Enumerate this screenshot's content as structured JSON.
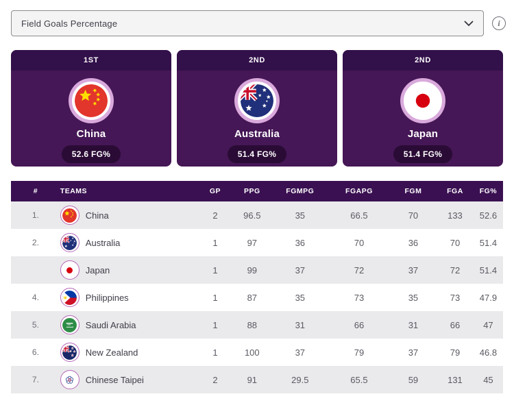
{
  "filter": {
    "selected_option": "Field Goals Percentage"
  },
  "podium": {
    "cards": [
      {
        "position_label": "1ST",
        "team": "China",
        "stat_badge": "52.6 FG%",
        "flag": "china"
      },
      {
        "position_label": "2ND",
        "team": "Australia",
        "stat_badge": "51.4 FG%",
        "flag": "australia"
      },
      {
        "position_label": "2ND",
        "team": "Japan",
        "stat_badge": "51.4 FG%",
        "flag": "japan"
      }
    ]
  },
  "table": {
    "columns": [
      "#",
      "TEAMS",
      "GP",
      "PPG",
      "FGMPG",
      "FGAPG",
      "FGM",
      "FGA",
      "FG%"
    ],
    "rows": [
      {
        "rank": "1.",
        "team": "China",
        "flag": "china",
        "gp": "2",
        "ppg": "96.5",
        "fgmpg": "35",
        "fgapg": "66.5",
        "fgm": "70",
        "fga": "133",
        "fg_pct": "52.6"
      },
      {
        "rank": "2.",
        "team": "Australia",
        "flag": "australia",
        "gp": "1",
        "ppg": "97",
        "fgmpg": "36",
        "fgapg": "70",
        "fgm": "36",
        "fga": "70",
        "fg_pct": "51.4"
      },
      {
        "rank": "",
        "team": "Japan",
        "flag": "japan",
        "gp": "1",
        "ppg": "99",
        "fgmpg": "37",
        "fgapg": "72",
        "fgm": "37",
        "fga": "72",
        "fg_pct": "51.4"
      },
      {
        "rank": "4.",
        "team": "Philippines",
        "flag": "philippines",
        "gp": "1",
        "ppg": "87",
        "fgmpg": "35",
        "fgapg": "73",
        "fgm": "35",
        "fga": "73",
        "fg_pct": "47.9"
      },
      {
        "rank": "5.",
        "team": "Saudi Arabia",
        "flag": "saudiarabia",
        "gp": "1",
        "ppg": "88",
        "fgmpg": "31",
        "fgapg": "66",
        "fgm": "31",
        "fga": "66",
        "fg_pct": "47"
      },
      {
        "rank": "6.",
        "team": "New Zealand",
        "flag": "newzealand",
        "gp": "1",
        "ppg": "100",
        "fgmpg": "37",
        "fgapg": "79",
        "fgm": "37",
        "fga": "79",
        "fg_pct": "46.8"
      },
      {
        "rank": "7.",
        "team": "Chinese Taipei",
        "flag": "chinesetaipei",
        "gp": "2",
        "ppg": "91",
        "fgmpg": "29.5",
        "fgapg": "65.5",
        "fgm": "59",
        "fga": "131",
        "fg_pct": "45"
      }
    ]
  },
  "icons": {
    "dropdown": "chevron-down-icon",
    "info": "info-icon",
    "flags": [
      "flag-china-icon",
      "flag-australia-icon",
      "flag-japan-icon",
      "flag-philippines-icon",
      "flag-saudi-arabia-icon",
      "flag-new-zealand-icon",
      "flag-chinese-taipei-icon"
    ]
  },
  "colors": {
    "card_header": "#32104A",
    "card_body": "#451756",
    "stat_pill": "#2A0B35",
    "flag_ring_outer": "#D9A9DC",
    "mini_flag_ring": "#B76AB9",
    "table_header": "#3A1052",
    "row_alt": "#EAE9EB",
    "select_bg": "#F4F4F4",
    "select_border": "#8D8D8D"
  }
}
